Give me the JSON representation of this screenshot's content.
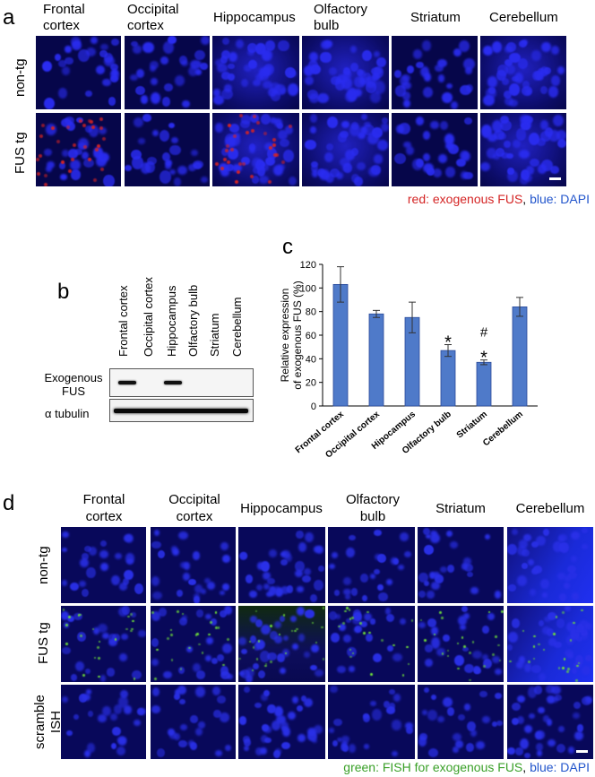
{
  "panel_a": {
    "letter": "a",
    "columns": [
      "Frontal\ncortex",
      "Occipital\ncortex",
      "Hippocampus",
      "Olfactory\nbulb",
      "Striatum",
      "Cerebellum"
    ],
    "rows": [
      "non-tg",
      "FUS tg"
    ],
    "caption": {
      "red_part": "red: exogenous FUS",
      "sep": ", ",
      "blue_part": "blue: DAPI"
    }
  },
  "panel_b": {
    "letter": "b",
    "lanes": [
      "Frontal cortex",
      "Occipital cortex",
      "Hippocampus",
      "Olfactory bulb",
      "Striatum",
      "Cerebellum"
    ],
    "row_labels": [
      "Exogenous\nFUS",
      "α tubulin"
    ],
    "fus_band_present": [
      1,
      0,
      1,
      0,
      0,
      0
    ]
  },
  "panel_c": {
    "letter": "c"
  },
  "chart_data": {
    "type": "bar",
    "categories": [
      "Frontal cortex",
      "Occipital cortex",
      "Hipocampus",
      "Olfactory bulb",
      "Striatum",
      "Cerebellum"
    ],
    "values": [
      103,
      78,
      75,
      47,
      37,
      84
    ],
    "errors": [
      15,
      3,
      13,
      5,
      2,
      8
    ],
    "annotations": [
      "",
      "",
      "",
      "*",
      "#\n*",
      ""
    ],
    "ylabel": "Relative expression\nof exogenous FUS (%)",
    "ylim": [
      0,
      120
    ],
    "yticks": [
      0,
      20,
      40,
      60,
      80,
      100,
      120
    ],
    "bar_color": "#4f7ac9",
    "grid": false
  },
  "panel_d": {
    "letter": "d",
    "columns": [
      "Frontal\ncortex",
      "Occipital\ncortex",
      "Hippocampus",
      "Olfactory\nbulb",
      "Striatum",
      "Cerebellum"
    ],
    "rows": [
      "non-tg",
      "FUS tg",
      "scramble\nISH"
    ],
    "caption": {
      "green_part": "green: FISH for exogenous FUS",
      "sep": ", ",
      "blue_part": "blue: DAPI"
    }
  },
  "colors": {
    "dapi_blue": "#1b1ae0",
    "red": "#d42424",
    "green": "#3aa028",
    "caption_blue": "#2255cc"
  }
}
